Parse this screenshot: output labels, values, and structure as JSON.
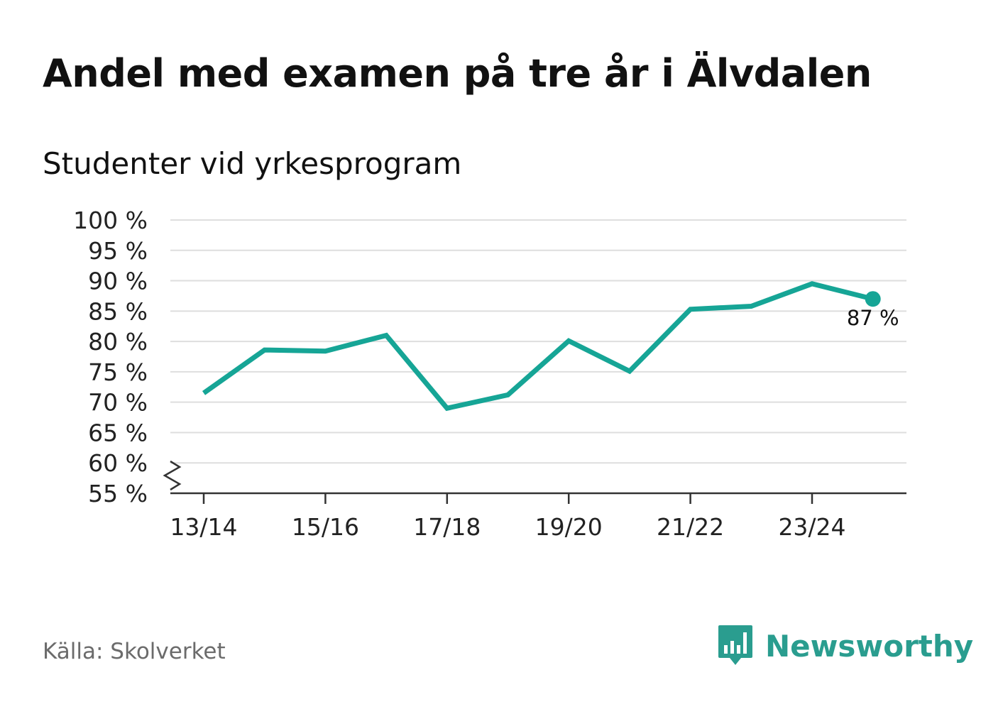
{
  "title": "Andel med examen på tre år i Älvdalen",
  "subtitle": "Studenter vid yrkesprogram",
  "source": "Källa: Skolverket",
  "brand": {
    "name": "Newsworthy",
    "icon": "bar-chart-speech-bubble-icon",
    "color": "#2a9d8f"
  },
  "colors": {
    "line": "#16a596",
    "grid": "#dedede",
    "axis": "#333333",
    "tick_text": "#222222"
  },
  "chart_data": {
    "type": "line",
    "title": "Andel med examen på tre år i Älvdalen",
    "subtitle": "Studenter vid yrkesprogram",
    "xlabel": "",
    "ylabel": "",
    "ylim": [
      55,
      100
    ],
    "y_ticks": [
      55,
      60,
      65,
      70,
      75,
      80,
      85,
      90,
      95,
      100
    ],
    "y_tick_labels": [
      "55 %",
      "60 %",
      "65 %",
      "70 %",
      "75 %",
      "80 %",
      "85 %",
      "90 %",
      "95 %",
      "100 %"
    ],
    "y_axis_break": true,
    "categories": [
      "13/14",
      "14/15",
      "15/16",
      "16/17",
      "17/18",
      "18/19",
      "19/20",
      "20/21",
      "21/22",
      "22/23",
      "23/24",
      "24/25"
    ],
    "x_tick_labels": [
      "13/14",
      "15/16",
      "17/18",
      "19/20",
      "21/22",
      "23/24"
    ],
    "series": [
      {
        "name": "Studenter vid yrkesprogram",
        "values": [
          71.5,
          78.6,
          78.4,
          81.0,
          69.0,
          71.2,
          80.1,
          75.1,
          85.3,
          85.8,
          89.5,
          87.0
        ]
      }
    ],
    "end_label": "87 %",
    "grid": true
  }
}
